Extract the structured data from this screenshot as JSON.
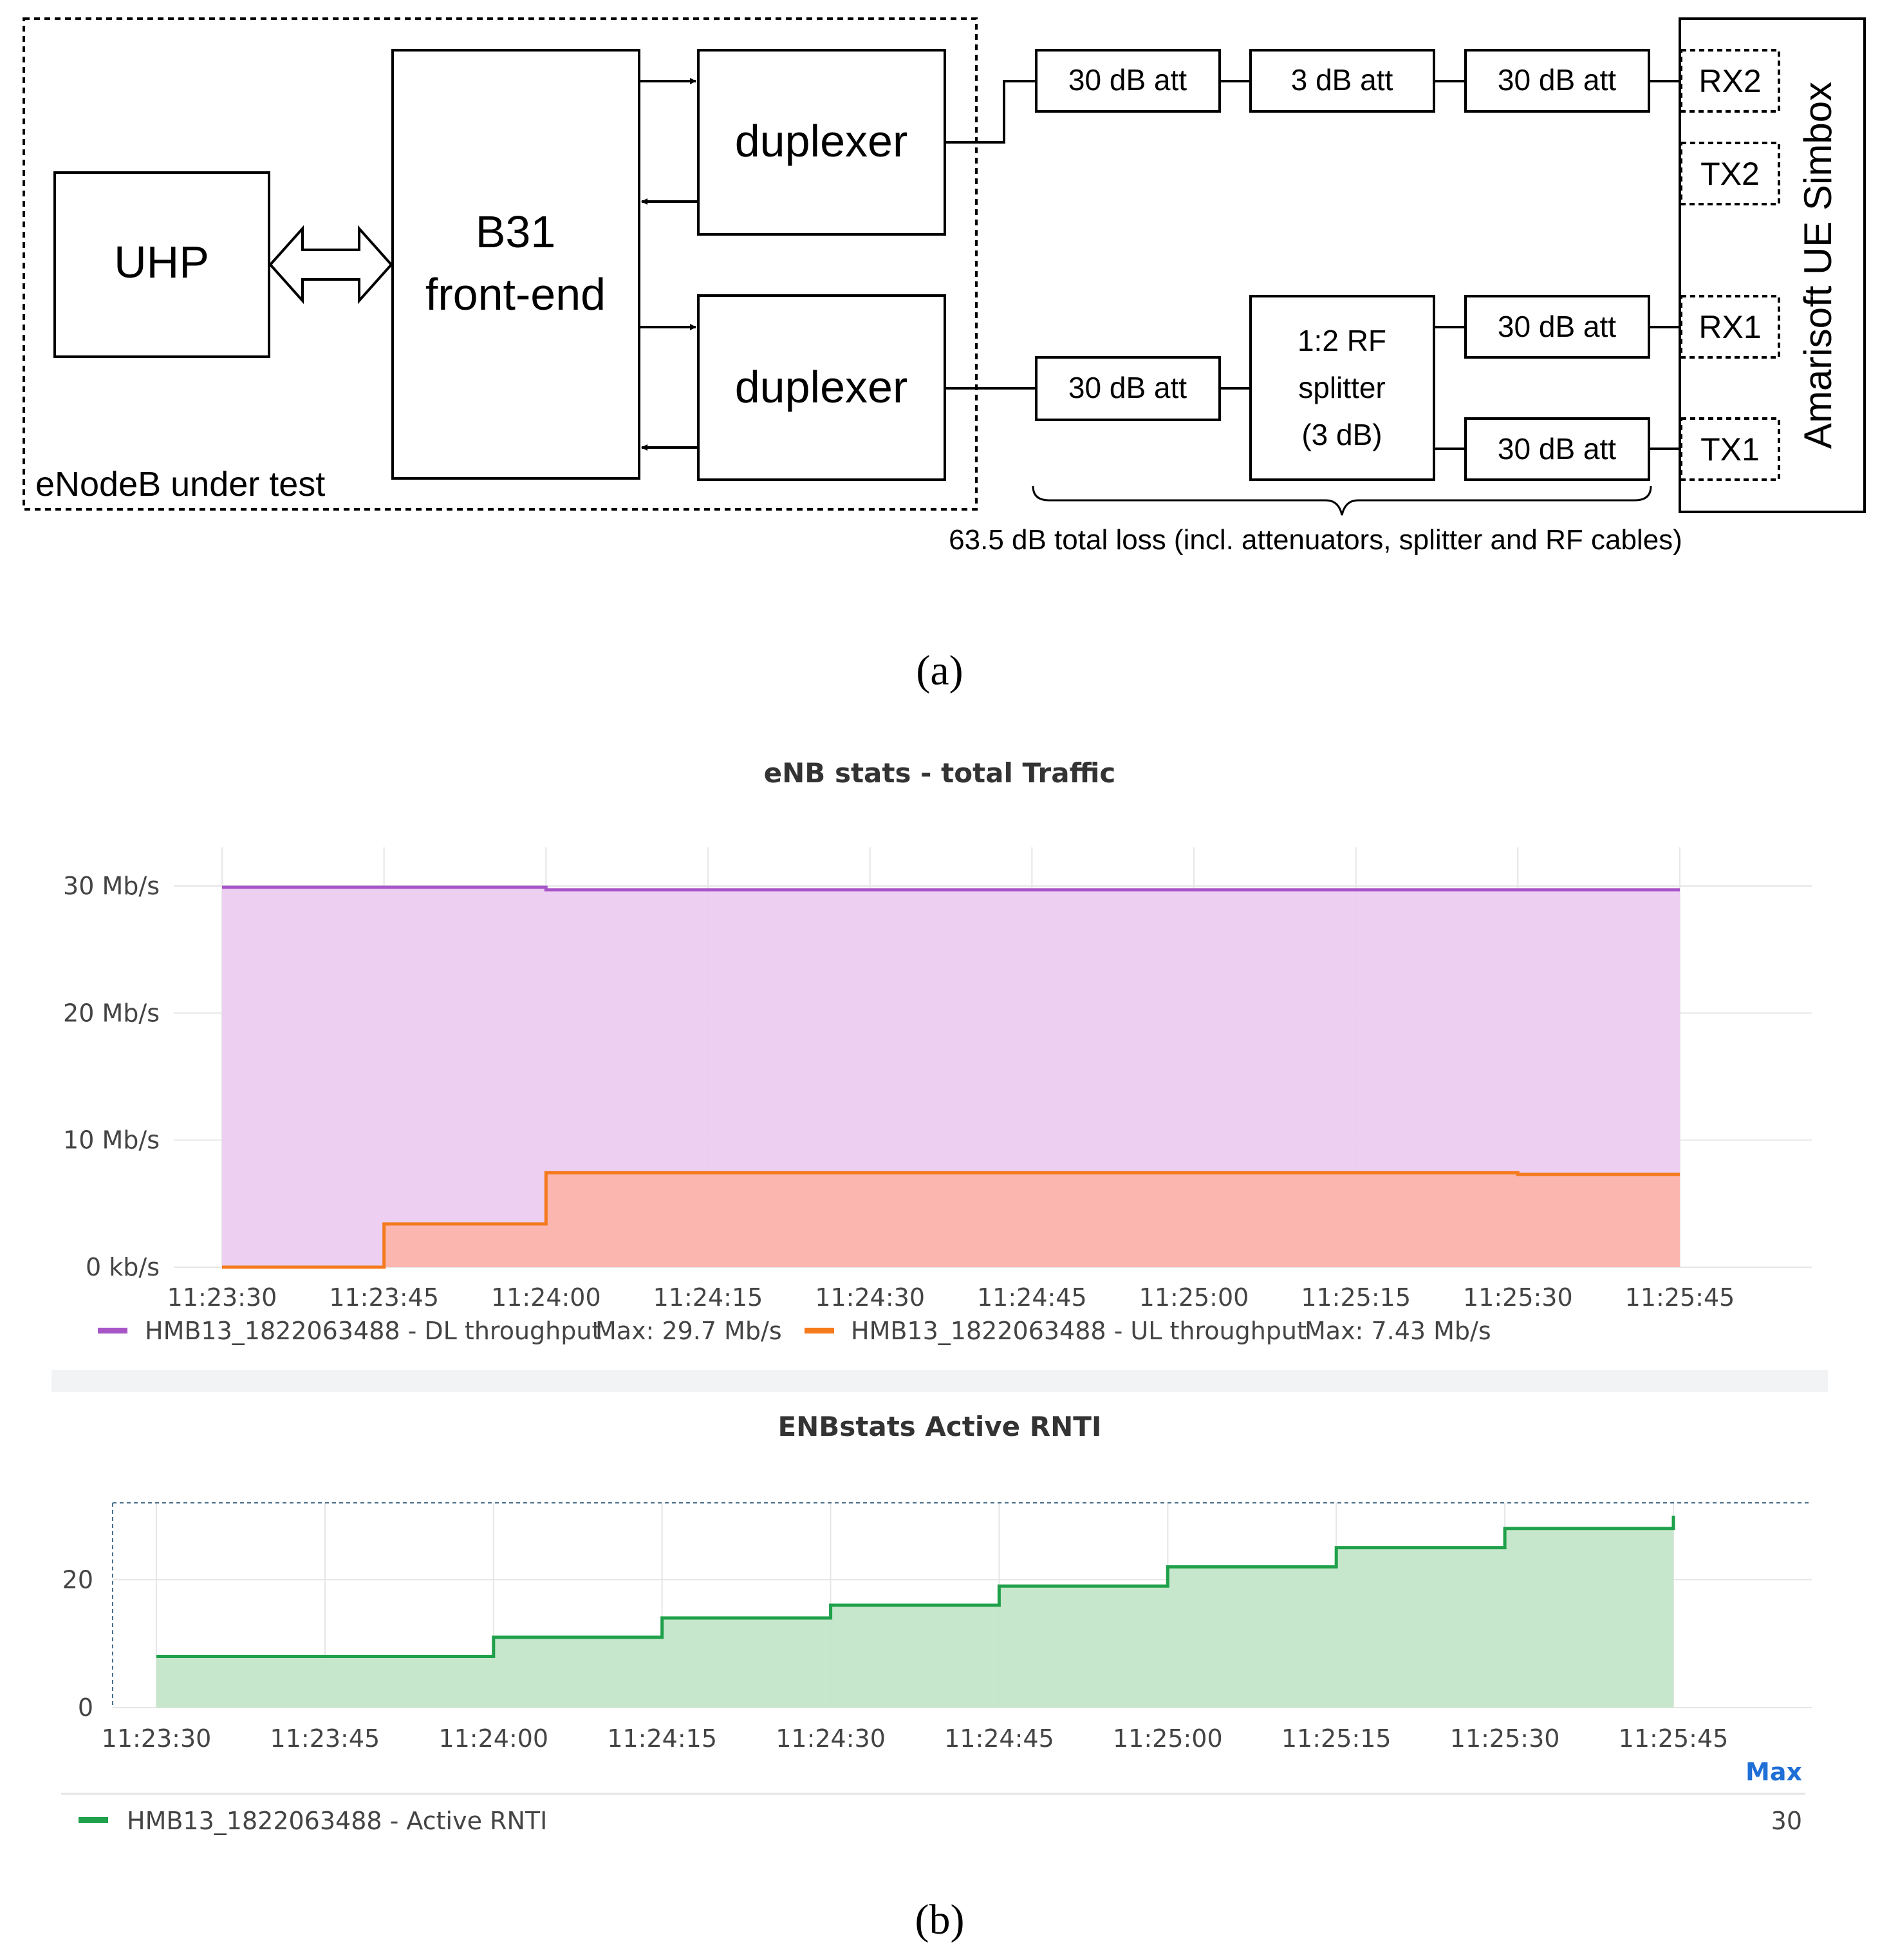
{
  "diagram": {
    "enodeb_label": "eNodeB under test",
    "uhp": "UHP",
    "frontend": [
      "B31",
      "front-end"
    ],
    "duplexer": "duplexer",
    "att30": "30 dB att",
    "att3": "3 dB att",
    "splitter": [
      "1:2 RF",
      "splitter",
      "(3 dB)"
    ],
    "ports": {
      "rx2": "RX2",
      "tx2": "TX2",
      "rx1": "RX1",
      "tx1": "TX1"
    },
    "simbox": "Amarisoft UE Simbox",
    "loss_note": "63.5 dB total loss (incl. attenuators, splitter and RF cables)"
  },
  "captions": {
    "a": "(a)",
    "b": "(b)"
  },
  "chart_data": [
    {
      "type": "area",
      "title": "eNB stats - total Traffic",
      "x_ticks": [
        "11:23:30",
        "11:23:45",
        "11:24:00",
        "11:24:15",
        "11:24:30",
        "11:24:45",
        "11:25:00",
        "11:25:15",
        "11:25:30",
        "11:25:45"
      ],
      "y_ticks": [
        "30 Mb/s",
        "20 Mb/s",
        "10 Mb/s",
        "0 kb/s"
      ],
      "ylim": [
        0,
        30
      ],
      "unit": "Mb/s",
      "grid": true,
      "legend_position": "bottom-left",
      "step": true,
      "series": [
        {
          "name": "HMB13_1822063488 - DL throughput",
          "legend_value": "Max: 29.7 Mb/s",
          "color": "#a855c8",
          "fill": "#ecccf0",
          "x": [
            "11:23:30",
            "11:24:00",
            "11:25:45"
          ],
          "values": [
            29.9,
            29.7,
            29.7
          ]
        },
        {
          "name": "HMB13_1822063488 - UL throughput",
          "legend_value": "Max: 7.43 Mb/s",
          "color": "#f47a1c",
          "fill": "#fcb4ab",
          "x": [
            "11:23:30",
            "11:23:45",
            "11:24:00",
            "11:25:30",
            "11:25:45"
          ],
          "values": [
            0,
            3.4,
            7.43,
            7.3,
            7.3
          ]
        }
      ]
    },
    {
      "type": "area",
      "title": "ENBstats Active RNTI",
      "x_ticks": [
        "11:23:30",
        "11:23:45",
        "11:24:00",
        "11:24:15",
        "11:24:30",
        "11:24:45",
        "11:25:00",
        "11:25:15",
        "11:25:30",
        "11:25:45"
      ],
      "y_ticks": [
        "20",
        "0"
      ],
      "ylim": [
        0,
        32
      ],
      "threshold_line": 32,
      "grid": true,
      "legend_position": "bottom",
      "legend_header": "Max",
      "step": true,
      "series": [
        {
          "name": "HMB13_1822063488 - Active RNTI",
          "legend_value": "30",
          "color": "#1fa04a",
          "fill": "#c3e6c9",
          "x": [
            "11:23:30",
            "11:24:00",
            "11:24:15",
            "11:24:30",
            "11:24:45",
            "11:25:00",
            "11:25:15",
            "11:25:30",
            "11:25:45"
          ],
          "values": [
            8,
            11,
            14,
            16,
            19,
            22,
            25,
            28,
            30
          ]
        }
      ]
    }
  ]
}
